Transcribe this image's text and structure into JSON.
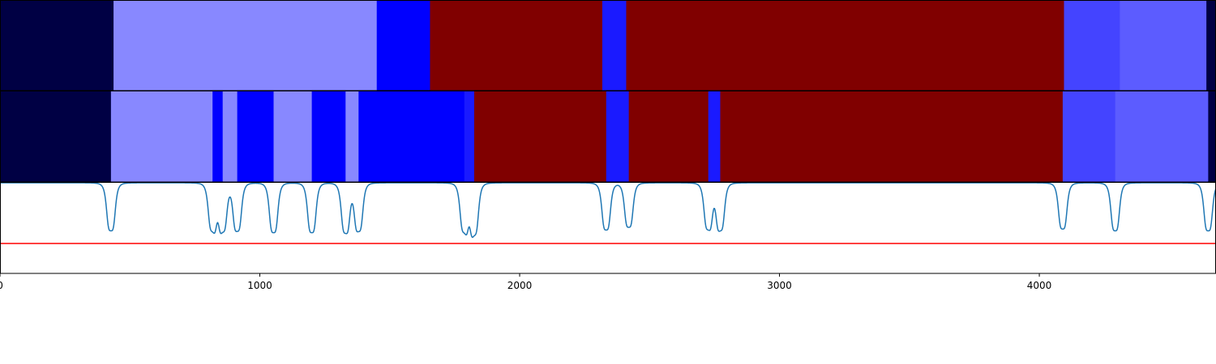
{
  "chart_data": {
    "type": "heatmap",
    "xlim": [
      0,
      4680
    ],
    "x_ticks": [
      {
        "value": 0,
        "label": "0"
      },
      {
        "value": 1000,
        "label": "1000"
      },
      {
        "value": 2000,
        "label": "2000"
      },
      {
        "value": 3000,
        "label": "3000"
      },
      {
        "value": 4000,
        "label": "4000"
      }
    ],
    "threshold_color": "#ff0000",
    "line_color": "#1f77b4",
    "tracks": [
      {
        "segments": [
          {
            "start": 0,
            "end": 437,
            "color": "#000044"
          },
          {
            "start": 437,
            "end": 1450,
            "color": "#8888ff"
          },
          {
            "start": 1450,
            "end": 1655,
            "color": "#0000ff"
          },
          {
            "start": 1655,
            "end": 2318,
            "color": "#800000"
          },
          {
            "start": 2318,
            "end": 2410,
            "color": "#1a1aff"
          },
          {
            "start": 2410,
            "end": 4095,
            "color": "#800000"
          },
          {
            "start": 4095,
            "end": 4310,
            "color": "#4444ff"
          },
          {
            "start": 4310,
            "end": 4643,
            "color": "#5c5cff"
          },
          {
            "start": 4643,
            "end": 4680,
            "color": "#000044"
          }
        ]
      },
      {
        "segments": [
          {
            "start": 0,
            "end": 427,
            "color": "#000044"
          },
          {
            "start": 427,
            "end": 818,
            "color": "#8888ff"
          },
          {
            "start": 818,
            "end": 857,
            "color": "#0000ff"
          },
          {
            "start": 857,
            "end": 913,
            "color": "#8888ff"
          },
          {
            "start": 913,
            "end": 1053,
            "color": "#0000ff"
          },
          {
            "start": 1053,
            "end": 1200,
            "color": "#8888ff"
          },
          {
            "start": 1200,
            "end": 1330,
            "color": "#0000ff"
          },
          {
            "start": 1330,
            "end": 1380,
            "color": "#8888ff"
          },
          {
            "start": 1380,
            "end": 1787,
            "color": "#0000ff"
          },
          {
            "start": 1787,
            "end": 1825,
            "color": "#1a1aff"
          },
          {
            "start": 1825,
            "end": 2333,
            "color": "#800000"
          },
          {
            "start": 2333,
            "end": 2420,
            "color": "#1a1aff"
          },
          {
            "start": 2420,
            "end": 2726,
            "color": "#800000"
          },
          {
            "start": 2726,
            "end": 2772,
            "color": "#1a1aff"
          },
          {
            "start": 2772,
            "end": 4090,
            "color": "#800000"
          },
          {
            "start": 4090,
            "end": 4292,
            "color": "#4444ff"
          },
          {
            "start": 4292,
            "end": 4650,
            "color": "#5c5cff"
          },
          {
            "start": 4650,
            "end": 4680,
            "color": "#000044"
          }
        ]
      }
    ],
    "signal": {
      "threshold": 0.33,
      "ylim": [
        0,
        1
      ],
      "baseline": 1,
      "dips": [
        {
          "x": 427,
          "depth": 0.53
        },
        {
          "x": 818,
          "depth": 0.52
        },
        {
          "x": 857,
          "depth": 0.52
        },
        {
          "x": 913,
          "depth": 0.53
        },
        {
          "x": 1053,
          "depth": 0.55
        },
        {
          "x": 1200,
          "depth": 0.55
        },
        {
          "x": 1330,
          "depth": 0.55
        },
        {
          "x": 1380,
          "depth": 0.53
        },
        {
          "x": 1787,
          "depth": 0.53
        },
        {
          "x": 1825,
          "depth": 0.56
        },
        {
          "x": 2333,
          "depth": 0.52
        },
        {
          "x": 2420,
          "depth": 0.49
        },
        {
          "x": 2726,
          "depth": 0.51
        },
        {
          "x": 2772,
          "depth": 0.52
        },
        {
          "x": 4090,
          "depth": 0.51
        },
        {
          "x": 4292,
          "depth": 0.53
        },
        {
          "x": 4650,
          "depth": 0.53
        }
      ]
    }
  }
}
